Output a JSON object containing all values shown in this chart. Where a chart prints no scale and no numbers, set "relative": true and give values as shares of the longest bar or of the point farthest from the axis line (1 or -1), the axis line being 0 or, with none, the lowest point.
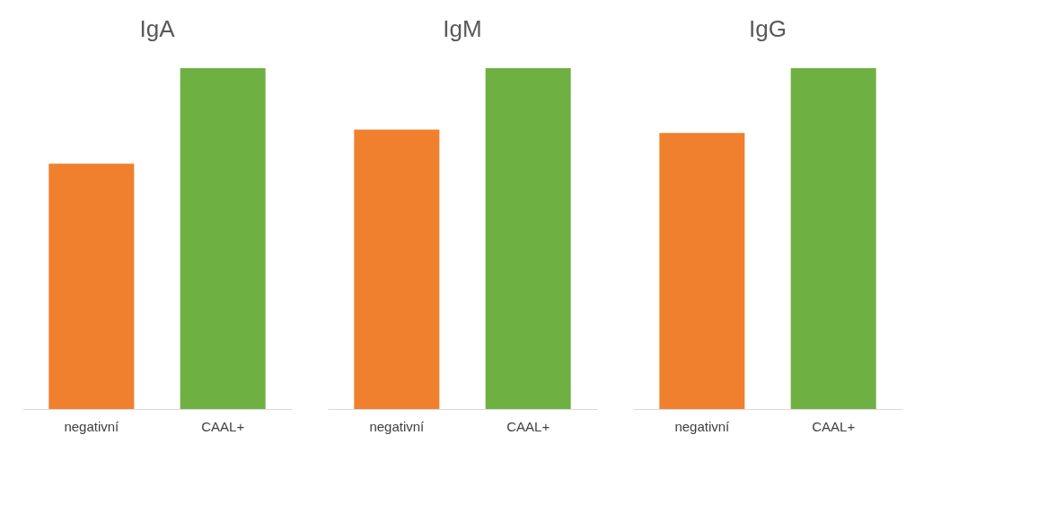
{
  "chart_data": [
    {
      "type": "bar",
      "title": "IgA",
      "categories": [
        "negativní",
        "CAAL+"
      ],
      "values": [
        0.72,
        1
      ],
      "colors": [
        "#f07f2e",
        "#6fb043"
      ],
      "relative": true,
      "grid": false,
      "legend": false,
      "tick_labels": "x"
    },
    {
      "type": "bar",
      "title": "IgM",
      "categories": [
        "negativní",
        "CAAL+"
      ],
      "values": [
        0.82,
        1
      ],
      "colors": [
        "#f07f2e",
        "#6fb043"
      ],
      "relative": true,
      "grid": false,
      "legend": false,
      "tick_labels": "x"
    },
    {
      "type": "bar",
      "title": "IgG",
      "categories": [
        "negativní",
        "CAAL+"
      ],
      "values": [
        0.81,
        1
      ],
      "colors": [
        "#f07f2e",
        "#6fb043"
      ],
      "relative": true,
      "grid": false,
      "legend": false,
      "tick_labels": "x"
    }
  ]
}
